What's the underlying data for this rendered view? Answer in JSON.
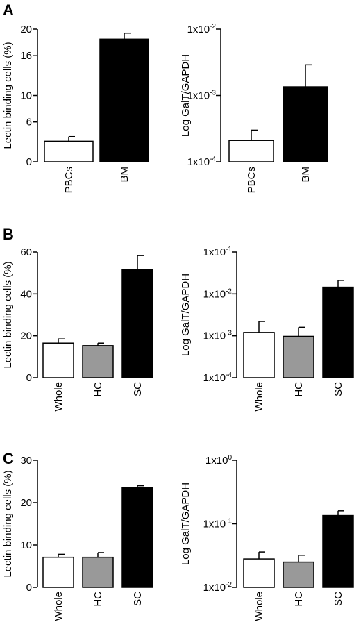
{
  "figure": {
    "panels": [
      {
        "letter": "A",
        "charts": [
          {
            "type": "bar",
            "scale": "linear",
            "ylabel": "Lectin binding cells (%)",
            "ylim": [
              0,
              20
            ],
            "yticks": [
              0,
              6,
              10,
              16,
              20
            ],
            "ytick_labels": [
              "0",
              "6",
              "10",
              "16",
              "20"
            ],
            "categories": [
              "PBCs",
              "BM"
            ],
            "values": [
              3.1,
              18.5
            ],
            "errors": [
              0.7,
              0.9
            ],
            "fills": [
              "#ffffff",
              "#000000"
            ]
          },
          {
            "type": "bar",
            "scale": "log",
            "ylabel": "Log GalT/GAPDH",
            "ylim": [
              0.0001,
              0.01
            ],
            "yticks": [
              0.0001,
              0.001,
              0.01
            ],
            "ytick_labels": [
              "1x10-4",
              "1x10-3",
              "1x10-2"
            ],
            "categories": [
              "PBCs",
              "BM"
            ],
            "values": [
              0.00021,
              0.00135
            ],
            "err_upper": [
              0.0003,
              0.0029
            ],
            "fills": [
              "#ffffff",
              "#000000"
            ]
          }
        ]
      },
      {
        "letter": "B",
        "charts": [
          {
            "type": "bar",
            "scale": "linear",
            "ylabel": "Lectin binding cells (%)",
            "ylim": [
              0,
              60
            ],
            "yticks": [
              0,
              20,
              40,
              60
            ],
            "ytick_labels": [
              "0",
              "20",
              "40",
              "60"
            ],
            "categories": [
              "Whole",
              "HC",
              "SC"
            ],
            "values": [
              16.5,
              15.3,
              51.5
            ],
            "errors": [
              2.0,
              1.2,
              6.8
            ],
            "fills": [
              "#ffffff",
              "#999999",
              "#000000"
            ]
          },
          {
            "type": "bar",
            "scale": "log",
            "ylabel": "Log GalT/GAPDH",
            "ylim": [
              0.0001,
              0.1
            ],
            "yticks": [
              0.0001,
              0.001,
              0.01,
              0.1
            ],
            "ytick_labels": [
              "1x10-4",
              "1x10-3",
              "1x10-2",
              "1x10-1"
            ],
            "categories": [
              "Whole",
              "HC",
              "SC"
            ],
            "values": [
              0.0012,
              0.00097,
              0.0145
            ],
            "err_upper": [
              0.0022,
              0.0016,
              0.021
            ],
            "fills": [
              "#ffffff",
              "#999999",
              "#000000"
            ]
          }
        ]
      },
      {
        "letter": "C",
        "charts": [
          {
            "type": "bar",
            "scale": "linear",
            "ylabel": "Lectin binding cells (%)",
            "ylim": [
              0,
              30
            ],
            "yticks": [
              0,
              10,
              20,
              30
            ],
            "ytick_labels": [
              "0",
              "10",
              "20",
              "30"
            ],
            "categories": [
              "Whole",
              "HC",
              "SC"
            ],
            "values": [
              7.1,
              7.1,
              23.5
            ],
            "errors": [
              0.7,
              1.1,
              0.5
            ],
            "fills": [
              "#ffffff",
              "#999999",
              "#000000"
            ]
          },
          {
            "type": "bar",
            "scale": "log",
            "ylabel": "Log GalT/GAPDH",
            "ylim": [
              0.01,
              1
            ],
            "yticks": [
              0.01,
              0.1,
              1
            ],
            "ytick_labels": [
              "1x10-2",
              "1x10-1",
              "1x100"
            ],
            "categories": [
              "Whole",
              "HC",
              "SC"
            ],
            "values": [
              0.028,
              0.025,
              0.135
            ],
            "err_upper": [
              0.036,
              0.032,
              0.16
            ],
            "fills": [
              "#ffffff",
              "#999999",
              "#000000"
            ]
          }
        ]
      }
    ]
  },
  "chart_data": [
    {
      "panel": "A",
      "type": "bar",
      "ylabel": "Lectin binding cells (%)",
      "categories": [
        "PBCs",
        "BM"
      ],
      "values": [
        3.1,
        18.5
      ],
      "errors": [
        0.7,
        0.9
      ],
      "ylim": [
        0,
        20
      ]
    },
    {
      "panel": "A",
      "type": "bar",
      "scale": "log",
      "ylabel": "Log GalT/GAPDH",
      "categories": [
        "PBCs",
        "BM"
      ],
      "values": [
        0.00021,
        0.00135
      ],
      "err_upper": [
        0.0003,
        0.0029
      ],
      "ylim": [
        0.0001,
        0.01
      ]
    },
    {
      "panel": "B",
      "type": "bar",
      "ylabel": "Lectin binding cells (%)",
      "categories": [
        "Whole",
        "HC",
        "SC"
      ],
      "values": [
        16.5,
        15.3,
        51.5
      ],
      "errors": [
        2.0,
        1.2,
        6.8
      ],
      "ylim": [
        0,
        60
      ]
    },
    {
      "panel": "B",
      "type": "bar",
      "scale": "log",
      "ylabel": "Log GalT/GAPDH",
      "categories": [
        "Whole",
        "HC",
        "SC"
      ],
      "values": [
        0.0012,
        0.00097,
        0.0145
      ],
      "err_upper": [
        0.0022,
        0.0016,
        0.021
      ],
      "ylim": [
        0.0001,
        0.1
      ]
    },
    {
      "panel": "C",
      "type": "bar",
      "ylabel": "Lectin binding cells (%)",
      "categories": [
        "Whole",
        "HC",
        "SC"
      ],
      "values": [
        7.1,
        7.1,
        23.5
      ],
      "errors": [
        0.7,
        1.1,
        0.5
      ],
      "ylim": [
        0,
        30
      ]
    },
    {
      "panel": "C",
      "type": "bar",
      "scale": "log",
      "ylabel": "Log GalT/GAPDH",
      "categories": [
        "Whole",
        "HC",
        "SC"
      ],
      "values": [
        0.028,
        0.025,
        0.135
      ],
      "err_upper": [
        0.036,
        0.032,
        0.16
      ],
      "ylim": [
        0.01,
        1
      ]
    }
  ]
}
